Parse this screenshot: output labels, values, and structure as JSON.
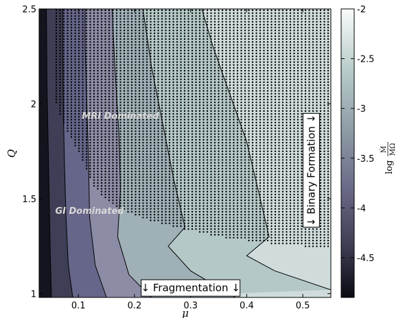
{
  "chart_data": {
    "type": "contour",
    "xlabel": "μ",
    "ylabel": "Q",
    "xlim": [
      0.03,
      0.55
    ],
    "ylim": [
      0.98,
      2.5
    ],
    "x_ticks": [
      "0.1",
      "0.2",
      "0.3",
      "0.4",
      "0.5"
    ],
    "x_tick_values": [
      0.1,
      0.2,
      0.3,
      0.4,
      0.5
    ],
    "y_ticks": [
      "1",
      "1.5",
      "2",
      "2.5"
    ],
    "y_tick_values": [
      1,
      1.5,
      2,
      2.5
    ],
    "colorbar": {
      "label": "log",
      "label_fraction": {
        "numerator": "Ṁ",
        "denominator": "MΩ"
      },
      "range": [
        -4.9,
        -2.0
      ],
      "ticks": [
        "-2",
        "-2.5",
        "-3",
        "-3.5",
        "-4",
        "-4.5"
      ],
      "tick_values": [
        -2,
        -2.5,
        -3,
        -3.5,
        -4,
        -4.5
      ],
      "levels": [
        -4.9,
        -4.5,
        -4.0,
        -3.5,
        -3.0,
        -2.5,
        -2.0
      ]
    },
    "contour_lines": [
      {
        "level": -4.5,
        "points": [
          [
            0.052,
            0.98
          ],
          [
            0.05,
            1.2
          ],
          [
            0.048,
            1.5
          ],
          [
            0.046,
            1.8
          ],
          [
            0.044,
            2.1
          ],
          [
            0.043,
            2.5
          ]
        ]
      },
      {
        "level": -4.0,
        "points": [
          [
            0.09,
            0.98
          ],
          [
            0.082,
            1.15
          ],
          [
            0.078,
            1.4
          ],
          [
            0.075,
            1.7
          ],
          [
            0.073,
            2.0
          ],
          [
            0.072,
            2.3
          ],
          [
            0.072,
            2.5
          ]
        ]
      },
      {
        "level": -3.5,
        "points": [
          [
            0.15,
            0.98
          ],
          [
            0.13,
            1.15
          ],
          [
            0.12,
            1.4
          ],
          [
            0.118,
            1.7
          ],
          [
            0.115,
            2.0
          ],
          [
            0.112,
            2.3
          ],
          [
            0.112,
            2.5
          ]
        ]
      },
      {
        "level": -3.0,
        "points": [
          [
            0.23,
            0.98
          ],
          [
            0.19,
            1.1
          ],
          [
            0.17,
            1.3
          ],
          [
            0.175,
            1.55
          ],
          [
            0.172,
            1.85
          ],
          [
            0.165,
            2.2
          ],
          [
            0.16,
            2.5
          ]
        ]
      },
      {
        "level": -2.5,
        "points": [
          [
            0.38,
            0.98
          ],
          [
            0.3,
            1.12
          ],
          [
            0.26,
            1.25
          ],
          [
            0.29,
            1.35
          ],
          [
            0.27,
            1.6
          ],
          [
            0.25,
            1.9
          ],
          [
            0.23,
            2.2
          ],
          [
            0.215,
            2.5
          ]
        ]
      },
      {
        "level": -2.0,
        "points": [
          [
            0.55,
            1.02
          ],
          [
            0.45,
            1.12
          ],
          [
            0.4,
            1.2
          ],
          [
            0.44,
            1.3
          ],
          [
            0.42,
            1.55
          ],
          [
            0.4,
            1.8
          ],
          [
            0.37,
            2.05
          ],
          [
            0.34,
            2.3
          ],
          [
            0.32,
            2.5
          ]
        ]
      }
    ],
    "dot_region_boundary": [
      [
        0.06,
        2.5
      ],
      [
        0.06,
        2.0
      ],
      [
        0.08,
        1.85
      ],
      [
        0.1,
        1.75
      ],
      [
        0.13,
        1.55
      ],
      [
        0.17,
        1.45
      ],
      [
        0.21,
        1.4
      ],
      [
        0.27,
        1.35
      ],
      [
        0.35,
        1.3
      ],
      [
        0.45,
        1.26
      ],
      [
        0.55,
        1.24
      ]
    ],
    "annotations": [
      {
        "text": "MRI Dominated",
        "x": 0.175,
        "y": 1.92,
        "style": "region"
      },
      {
        "text": "GI Dominated",
        "x": 0.12,
        "y": 1.42,
        "style": "region"
      },
      {
        "text": "↓ Fragmentation ↓",
        "x": 0.3,
        "y": 1.03,
        "style": "box"
      },
      {
        "text": "↓ Binary Formation ↓",
        "x": 0.515,
        "y": 1.65,
        "style": "box-vertical"
      }
    ]
  }
}
